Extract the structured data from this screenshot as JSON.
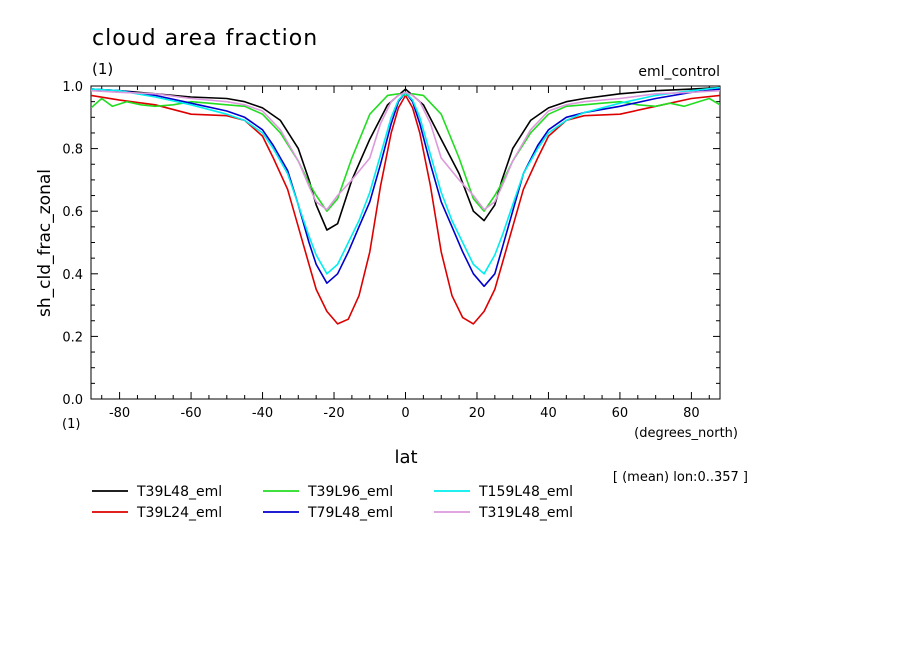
{
  "chart_data": {
    "type": "line",
    "title": "cloud area fraction",
    "title_units": "(1)",
    "subtitle_right": "eml_control",
    "xlabel": "lat",
    "xunits": "(degrees_north)",
    "ylabel": "sh_cld_frac_zonal",
    "yunits": "(1)",
    "note": "[ (mean) lon:0..357 ]",
    "xlim": [
      -88,
      88
    ],
    "ylim": [
      0,
      1
    ],
    "x_ticks": [
      "-80",
      "-60",
      "-40",
      "-20",
      "0",
      "20",
      "40",
      "60",
      "80"
    ],
    "y_ticks": [
      "0.0",
      "0.2",
      "0.4",
      "0.6",
      "0.8",
      "1.0"
    ],
    "grid": false,
    "legend_placement": "bottom",
    "series": [
      {
        "name": "T39L48_eml",
        "color": "#000000",
        "x": [
          -88,
          -80,
          -70,
          -60,
          -50,
          -45,
          -40,
          -35,
          -30,
          -27,
          -25,
          -22,
          -19,
          -15,
          -10,
          -5,
          0,
          5,
          10,
          15,
          19,
          22,
          25,
          27,
          30,
          35,
          40,
          45,
          50,
          60,
          70,
          80,
          88
        ],
        "y": [
          0.99,
          0.985,
          0.975,
          0.965,
          0.96,
          0.95,
          0.93,
          0.89,
          0.8,
          0.7,
          0.62,
          0.54,
          0.56,
          0.7,
          0.83,
          0.94,
          0.99,
          0.94,
          0.83,
          0.72,
          0.6,
          0.57,
          0.62,
          0.7,
          0.8,
          0.89,
          0.93,
          0.95,
          0.96,
          0.975,
          0.985,
          0.99,
          0.995
        ]
      },
      {
        "name": "T39L24_eml",
        "color": "#dd0000",
        "x": [
          -88,
          -80,
          -70,
          -60,
          -50,
          -45,
          -40,
          -37,
          -33,
          -30,
          -27,
          -25,
          -22,
          -19,
          -16,
          -13,
          -10,
          -7,
          -4,
          -2,
          0,
          2,
          4,
          7,
          10,
          13,
          16,
          19,
          22,
          25,
          27,
          30,
          33,
          37,
          40,
          45,
          50,
          60,
          70,
          80,
          88
        ],
        "y": [
          0.97,
          0.955,
          0.94,
          0.91,
          0.905,
          0.89,
          0.84,
          0.77,
          0.67,
          0.55,
          0.43,
          0.35,
          0.28,
          0.24,
          0.255,
          0.33,
          0.47,
          0.68,
          0.85,
          0.93,
          0.97,
          0.93,
          0.85,
          0.68,
          0.47,
          0.33,
          0.26,
          0.24,
          0.28,
          0.35,
          0.43,
          0.55,
          0.67,
          0.77,
          0.84,
          0.89,
          0.905,
          0.91,
          0.935,
          0.96,
          0.97
        ]
      },
      {
        "name": "T39L96_eml",
        "color": "#22dd22",
        "x": [
          -88,
          -85,
          -82,
          -78,
          -74,
          -70,
          -65,
          -60,
          -55,
          -50,
          -45,
          -40,
          -35,
          -30,
          -27,
          -25,
          -22,
          -19,
          -15,
          -10,
          -5,
          -2,
          0,
          2,
          5,
          10,
          15,
          19,
          22,
          25,
          27,
          30,
          35,
          40,
          45,
          50,
          55,
          60,
          65,
          70,
          74,
          78,
          82,
          85,
          88
        ],
        "y": [
          0.93,
          0.96,
          0.935,
          0.95,
          0.94,
          0.935,
          0.94,
          0.95,
          0.945,
          0.94,
          0.935,
          0.91,
          0.85,
          0.76,
          0.69,
          0.65,
          0.6,
          0.64,
          0.77,
          0.91,
          0.97,
          0.975,
          0.97,
          0.975,
          0.97,
          0.91,
          0.77,
          0.64,
          0.6,
          0.65,
          0.69,
          0.76,
          0.85,
          0.91,
          0.935,
          0.94,
          0.945,
          0.95,
          0.94,
          0.935,
          0.945,
          0.935,
          0.95,
          0.96,
          0.94
        ]
      },
      {
        "name": "T79L48_eml",
        "color": "#0000cc",
        "x": [
          -88,
          -80,
          -70,
          -60,
          -50,
          -45,
          -40,
          -37,
          -33,
          -30,
          -27,
          -25,
          -22,
          -19,
          -16,
          -13,
          -10,
          -7,
          -4,
          -2,
          0,
          2,
          4,
          7,
          10,
          13,
          16,
          19,
          22,
          25,
          27,
          30,
          33,
          37,
          40,
          45,
          50,
          60,
          70,
          80,
          88
        ],
        "y": [
          0.99,
          0.985,
          0.97,
          0.945,
          0.92,
          0.9,
          0.86,
          0.81,
          0.73,
          0.62,
          0.5,
          0.43,
          0.37,
          0.4,
          0.47,
          0.55,
          0.63,
          0.75,
          0.88,
          0.95,
          0.98,
          0.95,
          0.88,
          0.75,
          0.63,
          0.55,
          0.47,
          0.4,
          0.36,
          0.4,
          0.48,
          0.6,
          0.72,
          0.81,
          0.86,
          0.9,
          0.915,
          0.935,
          0.96,
          0.98,
          0.99
        ]
      },
      {
        "name": "T159L48_eml",
        "color": "#00eeee",
        "x": [
          -88,
          -80,
          -70,
          -60,
          -50,
          -45,
          -40,
          -37,
          -33,
          -30,
          -27,
          -25,
          -22,
          -19,
          -16,
          -13,
          -10,
          -7,
          -4,
          -2,
          0,
          2,
          4,
          7,
          10,
          13,
          16,
          19,
          22,
          25,
          27,
          30,
          33,
          37,
          40,
          45,
          50,
          60,
          70,
          80,
          88
        ],
        "y": [
          0.99,
          0.985,
          0.965,
          0.94,
          0.91,
          0.89,
          0.85,
          0.8,
          0.72,
          0.62,
          0.52,
          0.46,
          0.4,
          0.43,
          0.5,
          0.57,
          0.66,
          0.78,
          0.9,
          0.955,
          0.98,
          0.955,
          0.9,
          0.78,
          0.66,
          0.57,
          0.5,
          0.43,
          0.4,
          0.46,
          0.52,
          0.62,
          0.72,
          0.8,
          0.85,
          0.89,
          0.915,
          0.945,
          0.97,
          0.985,
          0.995
        ]
      },
      {
        "name": "T319L48_eml",
        "color": "#dd99dd",
        "x": [
          -88,
          -80,
          -70,
          -60,
          -50,
          -45,
          -40,
          -35,
          -30,
          -27,
          -25,
          -22,
          -19,
          -15,
          -10,
          -7,
          -4,
          -2,
          0,
          2,
          4,
          7,
          10,
          15,
          19,
          22,
          25,
          27,
          30,
          35,
          40,
          45,
          50,
          60,
          70,
          80,
          88
        ],
        "y": [
          0.985,
          0.98,
          0.975,
          0.96,
          0.95,
          0.94,
          0.92,
          0.86,
          0.76,
          0.68,
          0.63,
          0.605,
          0.65,
          0.7,
          0.77,
          0.88,
          0.95,
          0.97,
          0.98,
          0.97,
          0.95,
          0.88,
          0.77,
          0.7,
          0.65,
          0.605,
          0.63,
          0.68,
          0.76,
          0.86,
          0.92,
          0.94,
          0.95,
          0.96,
          0.975,
          0.98,
          0.985
        ]
      }
    ]
  }
}
